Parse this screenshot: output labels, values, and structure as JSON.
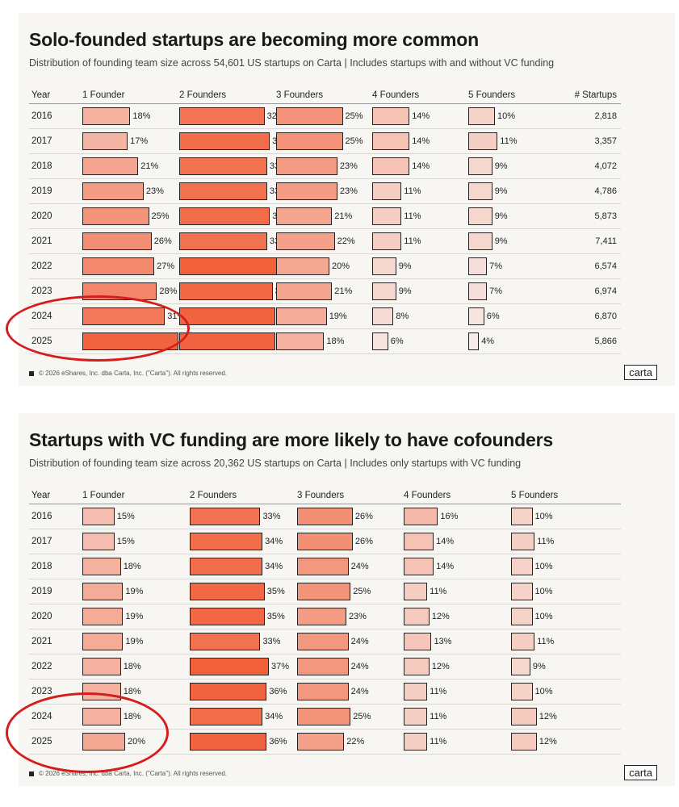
{
  "chart_data": [
    {
      "type": "table",
      "title": "Solo-founded startups are becoming more common",
      "subtitle": "Distribution of founding team size across 54,601 US startups on Carta | Includes startups with and without VC funding",
      "year_header": "Year",
      "columns": [
        "1 Founder",
        "2 Founders",
        "3 Founders",
        "4 Founders",
        "5 Founders"
      ],
      "count_header": "# Startups",
      "years": [
        "2016",
        "2017",
        "2018",
        "2019",
        "2020",
        "2021",
        "2022",
        "2023",
        "2024",
        "2025"
      ],
      "series": [
        {
          "name": "1 Founder",
          "values": [
            18,
            17,
            21,
            23,
            25,
            26,
            27,
            28,
            31,
            36
          ]
        },
        {
          "name": "2 Founders",
          "values": [
            32,
            34,
            33,
            33,
            34,
            33,
            37,
            35,
            36,
            36
          ]
        },
        {
          "name": "3 Founders",
          "values": [
            25,
            25,
            23,
            23,
            21,
            22,
            20,
            21,
            19,
            18
          ]
        },
        {
          "name": "4 Founders",
          "values": [
            14,
            14,
            14,
            11,
            11,
            11,
            9,
            9,
            8,
            6
          ]
        },
        {
          "name": "5 Founders",
          "values": [
            10,
            11,
            9,
            9,
            9,
            9,
            7,
            7,
            6,
            4
          ]
        }
      ],
      "counts": [
        "2,818",
        "3,357",
        "4,072",
        "4,786",
        "5,873",
        "7,411",
        "6,574",
        "6,974",
        "6,870",
        "5,866"
      ],
      "footer": "© 2026 eShares, Inc. dba Carta, Inc. (\"Carta\"). All rights reserved.",
      "logo": "carta"
    },
    {
      "type": "table",
      "title": "Startups with VC funding are more likely to have cofounders",
      "subtitle": "Distribution of founding team size across 20,362 US startups on Carta | Includes only startups with VC funding",
      "year_header": "Year",
      "columns": [
        "1 Founder",
        "2 Founders",
        "3 Founders",
        "4 Founders",
        "5 Founders"
      ],
      "years": [
        "2016",
        "2017",
        "2018",
        "2019",
        "2020",
        "2021",
        "2022",
        "2023",
        "2024",
        "2025"
      ],
      "series": [
        {
          "name": "1 Founder",
          "values": [
            15,
            15,
            18,
            19,
            19,
            19,
            18,
            18,
            18,
            20
          ]
        },
        {
          "name": "2 Founders",
          "values": [
            33,
            34,
            34,
            35,
            35,
            33,
            37,
            36,
            34,
            36
          ]
        },
        {
          "name": "3 Founders",
          "values": [
            26,
            26,
            24,
            25,
            23,
            24,
            24,
            24,
            25,
            22
          ]
        },
        {
          "name": "4 Founders",
          "values": [
            16,
            14,
            14,
            11,
            12,
            13,
            12,
            11,
            11,
            11
          ]
        },
        {
          "name": "5 Founders",
          "values": [
            10,
            11,
            10,
            10,
            10,
            11,
            9,
            10,
            12,
            12
          ]
        }
      ],
      "footer": "© 2026 eShares, Inc. dba Carta, Inc. (\"Carta\"). All rights reserved.",
      "logo": "carta"
    }
  ],
  "colors": {
    "accent": "#f2603a",
    "light": "#f6ece9",
    "circle": "#d61d1d",
    "card_bg": "#f7f6f3"
  }
}
